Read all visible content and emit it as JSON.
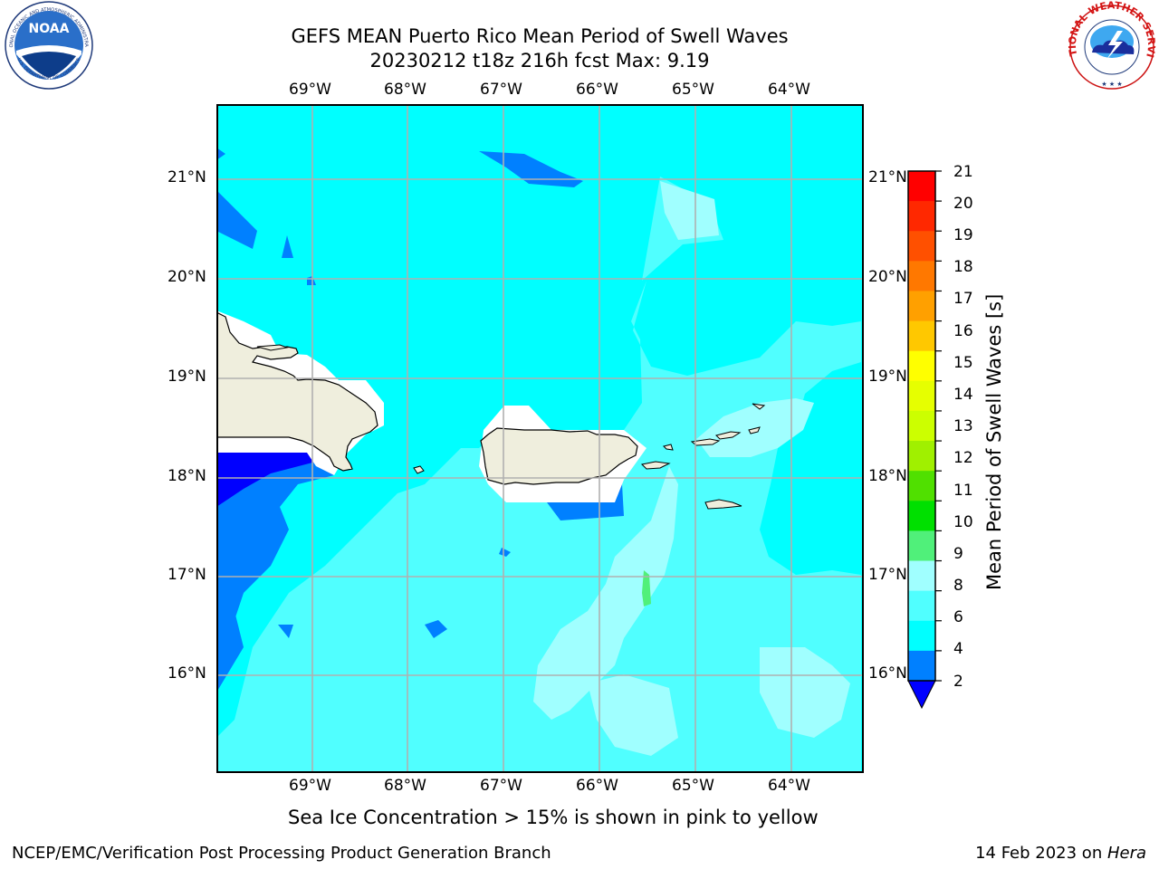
{
  "title": {
    "line1": "GEFS MEAN Puerto Rico Mean Period of Swell Waves",
    "line2": "20230212 t18z 216h fcst   Max: 9.19"
  },
  "map": {
    "lon_labels": [
      "69°W",
      "68°W",
      "67°W",
      "66°W",
      "65°W",
      "64°W"
    ],
    "lat_labels": [
      "21°N",
      "20°N",
      "19°N",
      "18°N",
      "17°N",
      "16°N"
    ],
    "land_color": "#efeedd",
    "no_data_color": "#ffffff",
    "grid_color": "#b0b0b0"
  },
  "colorbar": {
    "title": "Mean Period of Swell Waves [s]",
    "ticks": [
      "21",
      "20",
      "19",
      "18",
      "17",
      "16",
      "15",
      "14",
      "13",
      "12",
      "11",
      "10",
      "9",
      "8",
      "6",
      "4",
      "2"
    ],
    "colors": [
      "#ff0000",
      "#ff2800",
      "#ff5000",
      "#ff7800",
      "#ffa000",
      "#ffc800",
      "#ffff00",
      "#e6ff00",
      "#ccff00",
      "#a0f000",
      "#50e000",
      "#00e000",
      "#50f07a",
      "#a0ffff",
      "#50ffff",
      "#00ffff",
      "#0080ff",
      "#0000ff"
    ]
  },
  "caption": "Sea Ice Concentration > 15% is shown in pink to yellow",
  "footer": {
    "left": "NCEP/EMC/Verification Post Processing Product Generation Branch",
    "date": "14 Feb 2023 on ",
    "machine": "Hera"
  },
  "logos": {
    "noaa_text": "NOAA",
    "noaa_ring_top": "NATIONAL OCEANIC AND ATMOSPHERIC ADMINISTRATION",
    "noaa_ring_bottom": "U.S. DEPARTMENT OF COMMERCE",
    "nws_ring": "NATIONAL WEATHER SERVICE"
  }
}
